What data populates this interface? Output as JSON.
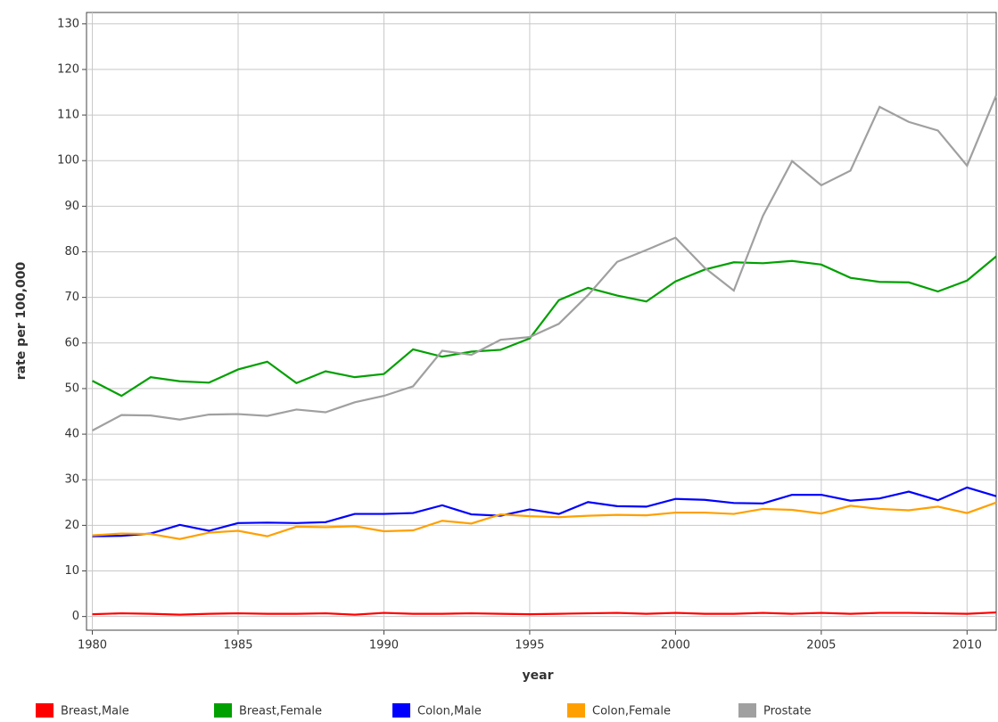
{
  "chart_data": {
    "type": "line",
    "x_label": "year",
    "y_label": "rate per 100,000",
    "x": [
      1980,
      1981,
      1982,
      1983,
      1984,
      1985,
      1986,
      1987,
      1988,
      1989,
      1990,
      1991,
      1992,
      1993,
      1994,
      1995,
      1996,
      1997,
      1998,
      1999,
      2000,
      2001,
      2002,
      2003,
      2004,
      2005,
      2006,
      2007,
      2008,
      2009,
      2010,
      2011
    ],
    "series": [
      {
        "name": "Breast,Male",
        "color": "#ff0000",
        "values": [
          0.5,
          0.7,
          0.6,
          0.4,
          0.6,
          0.7,
          0.6,
          0.6,
          0.7,
          0.4,
          0.8,
          0.6,
          0.6,
          0.7,
          0.6,
          0.5,
          0.6,
          0.7,
          0.8,
          0.6,
          0.8,
          0.6,
          0.6,
          0.8,
          0.6,
          0.8,
          0.6,
          0.8,
          0.8,
          0.7,
          0.6,
          0.9
        ]
      },
      {
        "name": "Breast,Female",
        "color": "#00a000",
        "values": [
          51.7,
          48.4,
          52.5,
          51.6,
          51.3,
          54.2,
          55.9,
          51.2,
          53.8,
          52.5,
          53.2,
          58.6,
          57.0,
          58.1,
          58.5,
          61.0,
          69.4,
          72.1,
          70.4,
          69.1,
          73.5,
          76.1,
          77.7,
          77.5,
          78.0,
          77.2,
          74.3,
          73.4,
          73.3,
          71.3,
          73.7,
          79.0
        ]
      },
      {
        "name": "Colon,Male",
        "color": "#0000ff",
        "values": [
          17.6,
          17.7,
          18.2,
          20.1,
          18.8,
          20.5,
          20.6,
          20.5,
          20.7,
          22.5,
          22.5,
          22.7,
          24.4,
          22.4,
          22.1,
          23.5,
          22.5,
          25.1,
          24.2,
          24.1,
          25.8,
          25.6,
          24.9,
          24.8,
          26.7,
          26.7,
          25.4,
          25.9,
          27.4,
          25.5,
          28.3,
          26.4
        ]
      },
      {
        "name": "Colon,Female",
        "color": "#ffa000",
        "values": [
          17.8,
          18.2,
          18.1,
          17.0,
          18.4,
          18.8,
          17.6,
          19.7,
          19.6,
          19.8,
          18.7,
          18.9,
          21.0,
          20.4,
          22.4,
          22.0,
          21.8,
          22.1,
          22.3,
          22.2,
          22.8,
          22.8,
          22.5,
          23.6,
          23.4,
          22.6,
          24.3,
          23.6,
          23.3,
          24.1,
          22.7,
          25.0
        ]
      },
      {
        "name": "Prostate",
        "color": "#a0a0a0",
        "values": [
          40.8,
          44.2,
          44.1,
          43.2,
          44.3,
          44.4,
          44.0,
          45.4,
          44.8,
          47.0,
          48.4,
          50.5,
          58.3,
          57.4,
          60.7,
          61.3,
          64.2,
          70.5,
          77.8,
          80.4,
          83.1,
          76.5,
          71.5,
          87.9,
          99.9,
          94.6,
          97.8,
          111.8,
          108.5,
          106.6,
          98.9,
          114.3
        ]
      }
    ],
    "xlim": [
      1979.8,
      2011
    ],
    "xticks": [
      1980,
      1985,
      1990,
      1995,
      2000,
      2005,
      2010
    ],
    "ylim": [
      -3,
      132.5
    ],
    "yticks": [
      0,
      10,
      20,
      30,
      40,
      50,
      60,
      70,
      80,
      90,
      100,
      110,
      120,
      130
    ],
    "grid": true,
    "legend": "bottom"
  }
}
